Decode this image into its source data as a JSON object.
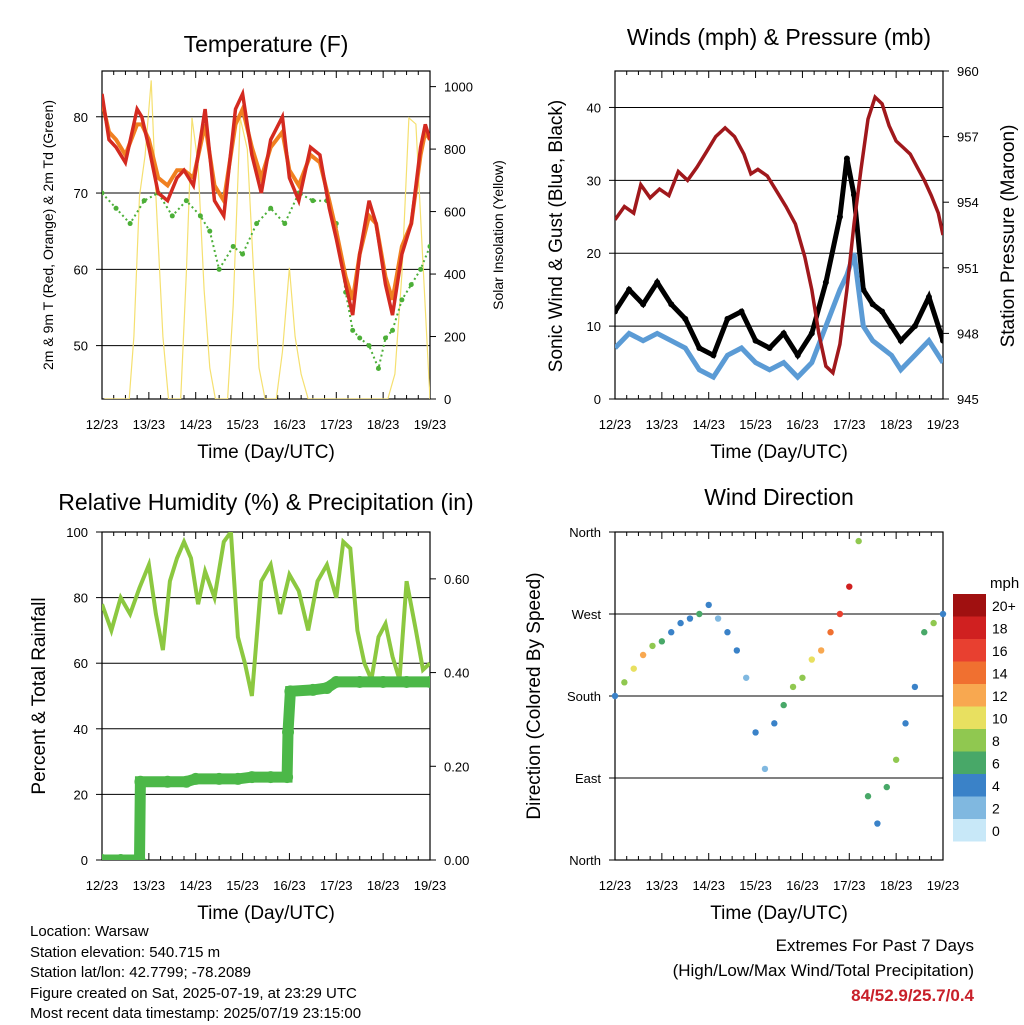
{
  "chart_data": [
    {
      "type": "line",
      "title": "Temperature (F)",
      "xlabel": "Time (Day/UTC)",
      "ylabel": "2m & 9m T (Red, Orange) & 2m Td (Green)",
      "y2label": "Solar Insolation (Yellow)",
      "x_ticks": [
        "12/23",
        "13/23",
        "14/23",
        "15/23",
        "16/23",
        "17/23",
        "18/23",
        "19/23"
      ],
      "xlim": [
        0,
        7
      ],
      "ylim": [
        43,
        86
      ],
      "y_ticks": [
        50,
        60,
        70,
        80
      ],
      "y2lim": [
        0,
        1050
      ],
      "y2_ticks": [
        0,
        200,
        400,
        600,
        800,
        1000
      ],
      "colors": {
        "t2m": "#d42a20",
        "t9m": "#f08020",
        "td2m": "#4caf38",
        "solar": "#f5e070"
      },
      "series": [
        {
          "key": "t2m",
          "x": [
            0,
            0.15,
            0.3,
            0.5,
            0.75,
            0.85,
            1.0,
            1.2,
            1.4,
            1.6,
            1.75,
            1.95,
            2.2,
            2.4,
            2.6,
            2.85,
            3.0,
            3.2,
            3.4,
            3.6,
            3.85,
            4.0,
            4.2,
            4.45,
            4.65,
            4.85,
            5.0,
            5.2,
            5.35,
            5.5,
            5.7,
            5.85,
            6.05,
            6.2,
            6.4,
            6.6,
            6.8,
            6.9,
            7.0
          ],
          "y": [
            83,
            77,
            76,
            74,
            81,
            80,
            76,
            70,
            69,
            72,
            73,
            71,
            81,
            69,
            67,
            81,
            83,
            75,
            70,
            77,
            80,
            72,
            69,
            76,
            75,
            68,
            64,
            58,
            54,
            62,
            69,
            66,
            58,
            54,
            62,
            66,
            76,
            79,
            77
          ]
        },
        {
          "key": "t9m",
          "x": [
            0,
            0.15,
            0.3,
            0.5,
            0.75,
            0.85,
            1.0,
            1.2,
            1.4,
            1.6,
            1.75,
            1.95,
            2.2,
            2.4,
            2.6,
            2.85,
            3.0,
            3.2,
            3.4,
            3.6,
            3.85,
            4.0,
            4.2,
            4.45,
            4.65,
            4.85,
            5.0,
            5.2,
            5.35,
            5.5,
            5.7,
            5.85,
            6.05,
            6.2,
            6.4,
            6.6,
            6.8,
            6.9,
            7.0
          ],
          "y": [
            82,
            78,
            77,
            75,
            79,
            79,
            77,
            72,
            71,
            73,
            73,
            72,
            79,
            71,
            69,
            79,
            81,
            76,
            72,
            76,
            78,
            73,
            71,
            75,
            74,
            69,
            65,
            59,
            56,
            62,
            67,
            66,
            59,
            56,
            63,
            66,
            75,
            78,
            77
          ]
        },
        {
          "key": "td2m",
          "x": [
            0,
            0.3,
            0.6,
            0.9,
            1.2,
            1.5,
            1.8,
            2.1,
            2.3,
            2.5,
            2.8,
            3.0,
            3.3,
            3.6,
            3.9,
            4.2,
            4.5,
            4.8,
            5.0,
            5.2,
            5.35,
            5.5,
            5.7,
            5.9,
            6.05,
            6.2,
            6.4,
            6.6,
            6.8,
            7.0
          ],
          "y": [
            70,
            68,
            66,
            69,
            70,
            67,
            69,
            67,
            65,
            60,
            63,
            62,
            66,
            68,
            66,
            70,
            69,
            69,
            66,
            57,
            52,
            51,
            50,
            47,
            51,
            52,
            56,
            58,
            60,
            63
          ]
        },
        {
          "key": "solar",
          "x": [
            0.05,
            0.12,
            0.2,
            0.3,
            0.45,
            0.58,
            0.68,
            0.8,
            0.92,
            1.05,
            1.15,
            1.3,
            1.42,
            1.55,
            1.68,
            1.8,
            1.92,
            2.05,
            2.18,
            2.3,
            2.42,
            2.55,
            2.68,
            2.8,
            2.95,
            3.1,
            3.22,
            3.35,
            3.48,
            3.6,
            3.72,
            3.85,
            4.0,
            4.12,
            4.25,
            4.4,
            4.55,
            4.7,
            4.82,
            4.95,
            5.1,
            5.25,
            5.4,
            5.55,
            5.68,
            5.8,
            5.95,
            6.1,
            6.25,
            6.4,
            6.55,
            6.7,
            6.82,
            6.95,
            7.0
          ],
          "y": [
            0,
            0,
            0,
            0,
            0,
            0,
            200,
            650,
            780,
            1020,
            650,
            200,
            0,
            0,
            0,
            400,
            900,
            750,
            350,
            100,
            0,
            0,
            0,
            300,
            900,
            800,
            450,
            100,
            0,
            0,
            0,
            150,
            420,
            200,
            80,
            0,
            0,
            0,
            0,
            0,
            0,
            0,
            0,
            0,
            0,
            0,
            0,
            0,
            80,
            400,
            900,
            880,
            520,
            140,
            0
          ]
        }
      ]
    },
    {
      "type": "line",
      "title": "Winds (mph) & Pressure (mb)",
      "xlabel": "Time (Day/UTC)",
      "ylabel": "Sonic Wind & Gust (Blue, Black)",
      "y2label": "Station Pressure (Maroon)",
      "x_ticks": [
        "12/23",
        "13/23",
        "14/23",
        "15/23",
        "16/23",
        "17/23",
        "18/23",
        "19/23"
      ],
      "xlim": [
        0,
        7
      ],
      "ylim": [
        0,
        45
      ],
      "y_ticks": [
        0,
        10,
        20,
        30,
        40
      ],
      "y2lim": [
        945,
        960
      ],
      "y2_ticks": [
        945,
        948,
        951,
        954,
        957,
        960
      ],
      "colors": {
        "wind": "#5b9bd5",
        "gust": "#000000",
        "pressure": "#a0181c"
      },
      "series": [
        {
          "key": "wind",
          "x": [
            0,
            0.3,
            0.6,
            0.9,
            1.2,
            1.5,
            1.8,
            2.1,
            2.4,
            2.7,
            3.0,
            3.3,
            3.6,
            3.9,
            4.2,
            4.5,
            4.8,
            4.95,
            5.1,
            5.3,
            5.5,
            5.7,
            5.9,
            6.1,
            6.4,
            6.7,
            7.0
          ],
          "y": [
            7,
            9,
            8,
            9,
            8,
            7,
            4,
            3,
            6,
            7,
            5,
            4,
            5,
            3,
            5,
            10,
            15,
            17,
            20,
            10,
            8,
            7,
            6,
            4,
            6,
            8,
            5
          ]
        },
        {
          "key": "gust",
          "x": [
            0,
            0.3,
            0.6,
            0.9,
            1.2,
            1.5,
            1.8,
            2.1,
            2.4,
            2.7,
            3.0,
            3.3,
            3.6,
            3.9,
            4.2,
            4.5,
            4.8,
            4.95,
            5.1,
            5.3,
            5.5,
            5.7,
            5.9,
            6.1,
            6.4,
            6.7,
            7.0
          ],
          "y": [
            12,
            15,
            13,
            16,
            13,
            11,
            7,
            6,
            11,
            12,
            8,
            7,
            9,
            6,
            9,
            16,
            25,
            33,
            28,
            15,
            13,
            12,
            10,
            8,
            10,
            14,
            8
          ]
        },
        {
          "key": "pressure",
          "x": [
            0,
            0.2,
            0.4,
            0.55,
            0.75,
            0.95,
            1.15,
            1.35,
            1.55,
            1.75,
            1.95,
            2.15,
            2.35,
            2.55,
            2.75,
            2.9,
            3.05,
            3.25,
            3.45,
            3.65,
            3.85,
            4.05,
            4.2,
            4.35,
            4.5,
            4.65,
            4.8,
            4.95,
            5.1,
            5.25,
            5.4,
            5.55,
            5.7,
            5.85,
            6.0,
            6.15,
            6.3,
            6.45,
            6.6,
            6.75,
            6.9,
            7.0
          ],
          "y": [
            953.2,
            953.8,
            953.5,
            954.8,
            954.2,
            954.6,
            954.3,
            955.4,
            955.0,
            955.6,
            956.3,
            957.0,
            957.4,
            957.0,
            956.2,
            955.3,
            955.5,
            955.2,
            954.5,
            953.8,
            953.0,
            951.5,
            950.0,
            948.0,
            946.5,
            946.2,
            947.5,
            950.0,
            953.0,
            955.5,
            957.8,
            958.8,
            958.5,
            957.5,
            956.8,
            956.5,
            956.2,
            955.6,
            955.0,
            954.3,
            953.5,
            952.5
          ]
        }
      ]
    },
    {
      "type": "line",
      "title": "Relative Humidity (%) & Precipitation (in)",
      "xlabel": "Time (Day/UTC)",
      "ylabel": "Percent & Total Rainfall",
      "x_ticks": [
        "12/23",
        "13/23",
        "14/23",
        "15/23",
        "16/23",
        "17/23",
        "18/23",
        "19/23"
      ],
      "xlim": [
        0,
        7
      ],
      "ylim": [
        0,
        100
      ],
      "y_ticks": [
        0,
        20,
        40,
        60,
        80,
        100
      ],
      "y2lim": [
        0,
        0.7
      ],
      "y2_ticks": [
        "0.00",
        "0.20",
        "0.40",
        "0.60"
      ],
      "colors": {
        "rh": "#8cc840",
        "precip": "#4cb848"
      },
      "series": [
        {
          "key": "rh",
          "x": [
            0,
            0.2,
            0.4,
            0.6,
            0.8,
            1.0,
            1.15,
            1.3,
            1.45,
            1.6,
            1.75,
            1.9,
            2.05,
            2.2,
            2.4,
            2.6,
            2.75,
            2.9,
            3.05,
            3.2,
            3.4,
            3.6,
            3.8,
            4.0,
            4.2,
            4.4,
            4.6,
            4.8,
            5.0,
            5.15,
            5.3,
            5.45,
            5.6,
            5.75,
            5.9,
            6.05,
            6.2,
            6.35,
            6.5,
            6.7,
            6.85,
            7.0
          ],
          "y": [
            78,
            70,
            80,
            75,
            83,
            90,
            75,
            64,
            85,
            92,
            97,
            92,
            78,
            88,
            80,
            97,
            100,
            68,
            60,
            50,
            85,
            90,
            75,
            87,
            82,
            70,
            85,
            90,
            80,
            97,
            95,
            70,
            60,
            55,
            68,
            72,
            62,
            55,
            85,
            70,
            58,
            60
          ]
        },
        {
          "key": "precip",
          "x": [
            0,
            0.4,
            0.8,
            0.82,
            1.4,
            1.8,
            2.0,
            2.5,
            2.9,
            3.2,
            3.6,
            3.95,
            3.97,
            4.02,
            4.5,
            4.8,
            5.0,
            5.5,
            6.0,
            6.5,
            7.0
          ],
          "y": [
            0,
            0,
            0,
            0.167,
            0.167,
            0.167,
            0.173,
            0.173,
            0.173,
            0.177,
            0.177,
            0.177,
            0.273,
            0.36,
            0.363,
            0.367,
            0.38,
            0.38,
            0.38,
            0.38,
            0.38
          ]
        }
      ]
    },
    {
      "type": "scatter",
      "title": "Wind Direction",
      "xlabel": "Time (Day/UTC)",
      "ylabel": "Direction (Colored By Speed)",
      "x_ticks": [
        "12/23",
        "13/23",
        "14/23",
        "15/23",
        "16/23",
        "17/23",
        "18/23",
        "19/23"
      ],
      "xlim": [
        0,
        7
      ],
      "ylim": [
        0,
        360
      ],
      "y_ticks": [
        "North",
        "East",
        "South",
        "West",
        "North"
      ],
      "legend": {
        "title": "mph",
        "labels": [
          "20+",
          "18",
          "16",
          "14",
          "12",
          "10",
          "8",
          "6",
          "4",
          "2",
          "0"
        ],
        "colors": [
          "#a01010",
          "#d02020",
          "#e84030",
          "#f07030",
          "#f8a850",
          "#e8e060",
          "#90c850",
          "#48a868",
          "#3a82c8",
          "#80b8e0",
          "#c8e8f8"
        ],
        "position": "right"
      },
      "series": [
        {
          "key": "direction",
          "x": [
            0,
            0.2,
            0.4,
            0.6,
            0.8,
            1.0,
            1.2,
            1.4,
            1.6,
            1.8,
            2.0,
            2.2,
            2.4,
            2.6,
            2.8,
            3.0,
            3.2,
            3.4,
            3.6,
            3.8,
            4.0,
            4.2,
            4.4,
            4.6,
            4.8,
            5.0,
            5.2,
            5.4,
            5.6,
            5.8,
            6.0,
            6.2,
            6.4,
            6.6,
            6.8,
            7.0
          ],
          "y": [
            180,
            195,
            210,
            225,
            235,
            240,
            250,
            260,
            265,
            270,
            280,
            265,
            250,
            230,
            200,
            140,
            100,
            150,
            170,
            190,
            200,
            220,
            230,
            250,
            270,
            300,
            350,
            70,
            40,
            80,
            110,
            150,
            190,
            250,
            260,
            270
          ],
          "speed": [
            4,
            8,
            10,
            12,
            8,
            6,
            4,
            4,
            4,
            6,
            4,
            2,
            4,
            4,
            2,
            4,
            2,
            4,
            6,
            8,
            8,
            10,
            12,
            14,
            16,
            18,
            8,
            6,
            4,
            6,
            8,
            4,
            4,
            6,
            8,
            4
          ]
        }
      ]
    }
  ],
  "info": {
    "location": "Location: Warsaw",
    "elevation": "Station elevation: 540.715 m",
    "latlon": "Station lat/lon: 42.7799; -78.2089",
    "created": "Figure created on Sat, 2025-07-19, at 23:29 UTC",
    "recent": "Most recent data timestamp: 2025/07/19 23:15:00"
  },
  "extremes": {
    "title": "Extremes For Past 7 Days",
    "subtitle": "(High/Low/Max Wind/Total Precipitation)",
    "values": "84/52.9/25.7/0.4"
  }
}
